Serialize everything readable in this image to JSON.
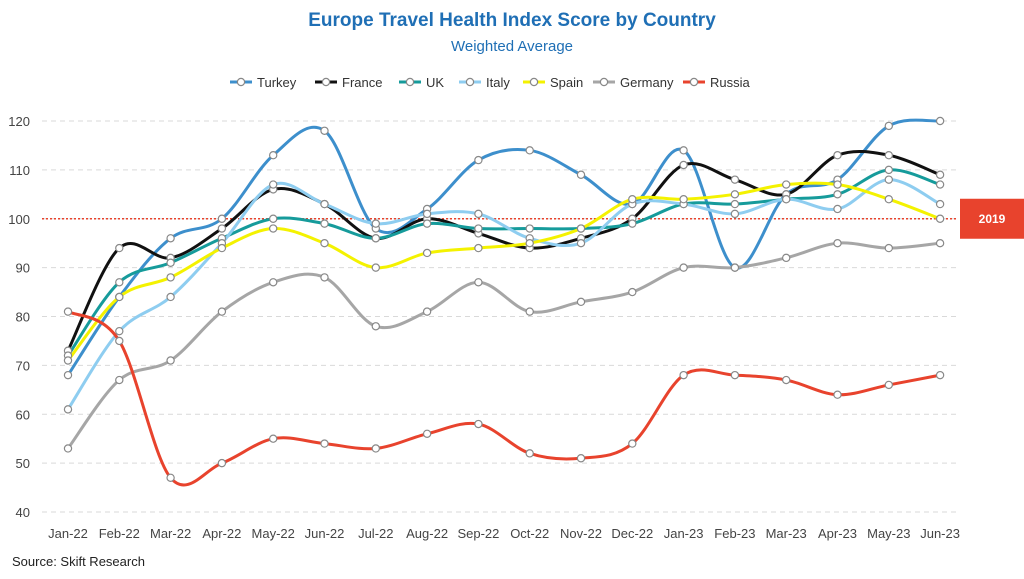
{
  "chart_data": {
    "type": "line",
    "title": "Europe Travel Health Index Score by Country",
    "subtitle": "Weighted Average",
    "source": "Source: Skift Research",
    "categories": [
      "Jan-22",
      "Feb-22",
      "Mar-22",
      "Apr-22",
      "May-22",
      "Jun-22",
      "Jul-22",
      "Aug-22",
      "Sep-22",
      "Oct-22",
      "Nov-22",
      "Dec-22",
      "Jan-23",
      "Feb-23",
      "Mar-23",
      "Apr-23",
      "May-23",
      "Jun-23"
    ],
    "ylim": [
      40,
      120
    ],
    "yticks": [
      40,
      50,
      60,
      70,
      80,
      90,
      100,
      110,
      120
    ],
    "grid": true,
    "legend_position": "top",
    "reference_line": {
      "value": 100,
      "label": "2019",
      "color": "#e8432d"
    },
    "series": [
      {
        "name": "Turkey",
        "color": "#3d8fcc",
        "values": [
          68,
          84,
          96,
          100,
          113,
          118,
          98,
          102,
          112,
          114,
          109,
          103,
          114,
          90,
          105,
          108,
          119,
          120
        ]
      },
      {
        "name": "France",
        "color": "#111111",
        "values": [
          73,
          94,
          92,
          98,
          106,
          103,
          96,
          100,
          97,
          94,
          96,
          100,
          111,
          108,
          105,
          113,
          113,
          109
        ]
      },
      {
        "name": "UK",
        "color": "#169b9b",
        "values": [
          72,
          87,
          91,
          96,
          100,
          99,
          96,
          99,
          98,
          98,
          98,
          99,
          103,
          103,
          104,
          105,
          110,
          107
        ]
      },
      {
        "name": "Italy",
        "color": "#8ecdf0",
        "values": [
          61,
          77,
          84,
          95,
          107,
          103,
          99,
          101,
          101,
          96,
          95,
          103,
          103,
          101,
          104,
          102,
          108,
          103
        ]
      },
      {
        "name": "Spain",
        "color": "#f4f200",
        "values": [
          71,
          84,
          88,
          94,
          98,
          95,
          90,
          93,
          94,
          95,
          98,
          104,
          104,
          105,
          107,
          107,
          104,
          100
        ]
      },
      {
        "name": "Germany",
        "color": "#a6a6a6",
        "values": [
          53,
          67,
          71,
          81,
          87,
          88,
          78,
          81,
          87,
          81,
          83,
          85,
          90,
          90,
          92,
          95,
          94,
          95
        ]
      },
      {
        "name": "Russia",
        "color": "#e8432d",
        "values": [
          81,
          75,
          47,
          50,
          55,
          54,
          53,
          56,
          58,
          52,
          51,
          54,
          68,
          68,
          67,
          64,
          66,
          68
        ]
      }
    ]
  }
}
